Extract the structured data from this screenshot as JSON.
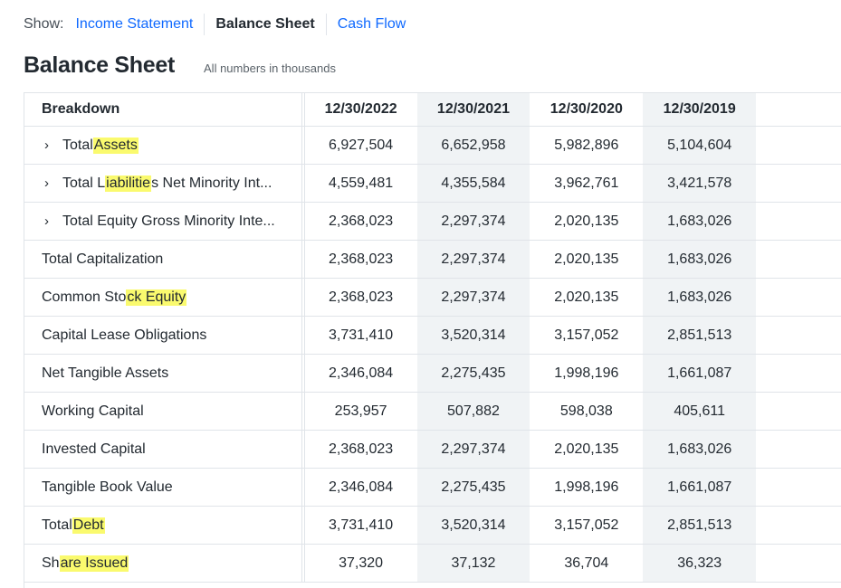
{
  "show_bar": {
    "label": "Show:",
    "tabs": [
      {
        "label": "Income Statement",
        "active": false
      },
      {
        "label": "Balance Sheet",
        "active": true
      },
      {
        "label": "Cash Flow",
        "active": false
      }
    ]
  },
  "page": {
    "title": "Balance Sheet",
    "units_note": "All numbers in thousands"
  },
  "table": {
    "breakdown_header": "Breakdown",
    "columns": [
      "12/30/2022",
      "12/30/2021",
      "12/30/2020",
      "12/30/2019"
    ],
    "rows": [
      {
        "label_pre": "Total ",
        "label_mark": "Assets",
        "label_post": "",
        "expandable": true,
        "values": [
          "6,927,504",
          "6,652,958",
          "5,982,896",
          "5,104,604"
        ]
      },
      {
        "label_pre": "Total L",
        "label_mark": "iabilitie",
        "label_post": "s Net Minority Int...",
        "expandable": true,
        "values": [
          "4,559,481",
          "4,355,584",
          "3,962,761",
          "3,421,578"
        ]
      },
      {
        "label_pre": "Total Equity Gross Minority Inte...",
        "label_mark": "",
        "label_post": "",
        "expandable": true,
        "values": [
          "2,368,023",
          "2,297,374",
          "2,020,135",
          "1,683,026"
        ]
      },
      {
        "label_pre": "Total Capitalization",
        "label_mark": "",
        "label_post": "",
        "expandable": false,
        "values": [
          "2,368,023",
          "2,297,374",
          "2,020,135",
          "1,683,026"
        ]
      },
      {
        "label_pre": "Common Sto",
        "label_mark": "ck Equity",
        "label_post": "",
        "expandable": false,
        "values": [
          "2,368,023",
          "2,297,374",
          "2,020,135",
          "1,683,026"
        ]
      },
      {
        "label_pre": "Capital Lease Obligations",
        "label_mark": "",
        "label_post": "",
        "expandable": false,
        "values": [
          "3,731,410",
          "3,520,314",
          "3,157,052",
          "2,851,513"
        ]
      },
      {
        "label_pre": "Net Tangible Assets",
        "label_mark": "",
        "label_post": "",
        "expandable": false,
        "values": [
          "2,346,084",
          "2,275,435",
          "1,998,196",
          "1,661,087"
        ]
      },
      {
        "label_pre": "Working Capital",
        "label_mark": "",
        "label_post": "",
        "expandable": false,
        "values": [
          "253,957",
          "507,882",
          "598,038",
          "405,611"
        ]
      },
      {
        "label_pre": "Invested Capital",
        "label_mark": "",
        "label_post": "",
        "expandable": false,
        "values": [
          "2,368,023",
          "2,297,374",
          "2,020,135",
          "1,683,026"
        ]
      },
      {
        "label_pre": "Tangible Book Value",
        "label_mark": "",
        "label_post": "",
        "expandable": false,
        "values": [
          "2,346,084",
          "2,275,435",
          "1,998,196",
          "1,661,087"
        ]
      },
      {
        "label_pre": "Total ",
        "label_mark": "Debt",
        "label_post": "",
        "expandable": false,
        "values": [
          "3,731,410",
          "3,520,314",
          "3,157,052",
          "2,851,513"
        ]
      },
      {
        "label_pre": "Sh",
        "label_mark": "are Issued",
        "label_post": "",
        "expandable": false,
        "values": [
          "37,320",
          "37,132",
          "36,704",
          "36,323"
        ]
      }
    ]
  },
  "icons": {
    "expand": "chevron-right-icon"
  },
  "colors": {
    "link": "#0f69ff",
    "highlight": "#fafa6e",
    "shade": "#f0f3f5"
  }
}
